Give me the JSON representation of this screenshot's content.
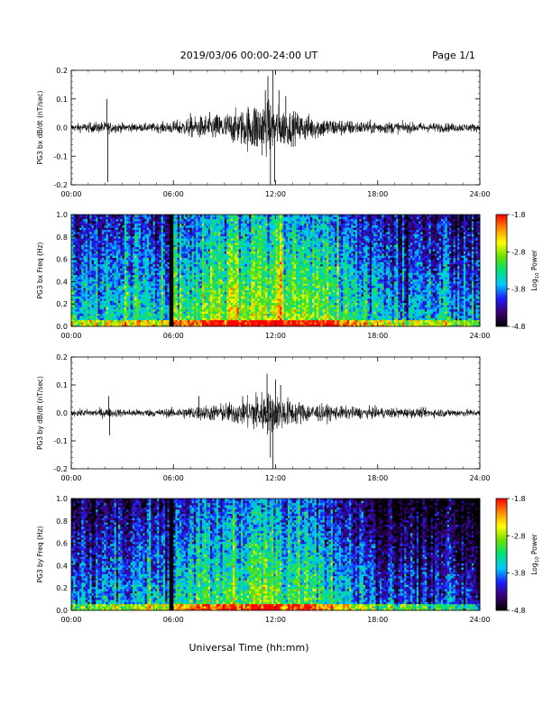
{
  "header": {
    "title": "2019/03/06  00:00-24:00 UT",
    "page": "Page 1/1"
  },
  "footer": {
    "xlabel": "Universal Time (hh:mm)"
  },
  "colors": {
    "trace": "#000000",
    "colormap": [
      "#000000",
      "#3b0070",
      "#1d1dff",
      "#00c8ff",
      "#00e07a",
      "#6be000",
      "#ffff00",
      "#ff8c00",
      "#ff0000"
    ]
  },
  "colorbar": {
    "label": "Log10 Power",
    "label_main": "Log",
    "label_sub": "10",
    "label_tail": " Power",
    "ticks": [
      "-1.8",
      "-2.8",
      "-3.8",
      "-4.8"
    ],
    "range": [
      -4.8,
      -1.8
    ]
  },
  "chart_data": [
    {
      "type": "line",
      "ylabel": "PG3 bx dB/dt (nT/sec)",
      "ylim": [
        -0.2,
        0.2
      ],
      "yticks": [
        "0.2",
        "0.1",
        "0.0",
        "-0.1",
        "-0.2"
      ],
      "xlim": [
        "00:00",
        "24:00"
      ],
      "xticks": [
        "00:00",
        "06:00",
        "12:00",
        "18:00",
        "24:00"
      ],
      "envelope_hours": [
        0,
        1,
        2,
        3,
        4,
        5,
        6,
        7,
        8,
        9,
        10,
        11,
        12,
        13,
        14,
        15,
        16,
        17,
        18,
        19,
        20,
        21,
        22,
        23,
        24
      ],
      "envelope_amplitude": [
        0.012,
        0.015,
        0.018,
        0.014,
        0.012,
        0.014,
        0.02,
        0.03,
        0.04,
        0.045,
        0.055,
        0.09,
        0.07,
        0.05,
        0.04,
        0.03,
        0.025,
        0.02,
        0.02,
        0.018,
        0.016,
        0.015,
        0.014,
        0.013,
        0.012
      ],
      "spikes": [
        [
          2.1,
          0.1
        ],
        [
          2.15,
          -0.19
        ],
        [
          7.0,
          0.05
        ],
        [
          11.4,
          0.13
        ],
        [
          11.55,
          0.18
        ],
        [
          11.7,
          -0.2
        ],
        [
          11.85,
          0.2
        ],
        [
          11.95,
          -0.19
        ],
        [
          12.2,
          0.13
        ],
        [
          12.6,
          0.11
        ]
      ]
    },
    {
      "type": "heatmap",
      "ylabel": "PG3 bx Freq (Hz)",
      "ylim": [
        0.0,
        1.0
      ],
      "yticks": [
        "1.0",
        "0.8",
        "0.6",
        "0.4",
        "0.2",
        "0.0"
      ],
      "xlim": [
        "00:00",
        "24:00"
      ],
      "xticks": [
        "00:00",
        "06:00",
        "12:00",
        "18:00",
        "24:00"
      ],
      "value_range": [
        -4.8,
        -1.8
      ],
      "gaps_hours": [
        [
          5.75,
          5.95
        ]
      ],
      "activity_hours": [
        0,
        2,
        4,
        6,
        8,
        10,
        12,
        14,
        16,
        18,
        20,
        22,
        24
      ],
      "activity_log_power": [
        -3.4,
        -3.3,
        -3.3,
        -3.2,
        -2.8,
        -2.7,
        -2.6,
        -2.8,
        -3.0,
        -3.4,
        -3.6,
        -3.5,
        -3.6
      ]
    },
    {
      "type": "line",
      "ylabel": "PG3 by dB/dt (nT/sec)",
      "ylim": [
        -0.2,
        0.2
      ],
      "yticks": [
        "0.2",
        "0.1",
        "0.0",
        "-0.1",
        "-0.2"
      ],
      "xlim": [
        "00:00",
        "24:00"
      ],
      "xticks": [
        "00:00",
        "06:00",
        "12:00",
        "18:00",
        "24:00"
      ],
      "envelope_hours": [
        0,
        1,
        2,
        3,
        4,
        5,
        6,
        7,
        8,
        9,
        10,
        11,
        12,
        13,
        14,
        15,
        16,
        17,
        18,
        19,
        20,
        21,
        22,
        23,
        24
      ],
      "envelope_amplitude": [
        0.01,
        0.012,
        0.015,
        0.012,
        0.012,
        0.012,
        0.015,
        0.02,
        0.025,
        0.03,
        0.04,
        0.07,
        0.06,
        0.04,
        0.03,
        0.025,
        0.02,
        0.018,
        0.017,
        0.016,
        0.015,
        0.014,
        0.013,
        0.012,
        0.011
      ],
      "spikes": [
        [
          2.2,
          0.06
        ],
        [
          2.25,
          -0.08
        ],
        [
          7.5,
          0.06
        ],
        [
          11.5,
          0.14
        ],
        [
          11.7,
          -0.16
        ],
        [
          11.85,
          -0.2
        ],
        [
          12.0,
          0.12
        ],
        [
          12.3,
          0.1
        ]
      ]
    },
    {
      "type": "heatmap",
      "ylabel": "PG3 by Freq (Hz)",
      "ylim": [
        0.0,
        1.0
      ],
      "yticks": [
        "1.0",
        "0.8",
        "0.6",
        "0.4",
        "0.2",
        "0.0"
      ],
      "xlim": [
        "00:00",
        "24:00"
      ],
      "xticks": [
        "00:00",
        "06:00",
        "12:00",
        "18:00",
        "24:00"
      ],
      "value_range": [
        -4.8,
        -1.8
      ],
      "gaps_hours": [
        [
          5.75,
          5.95
        ]
      ],
      "activity_hours": [
        0,
        2,
        4,
        6,
        8,
        10,
        12,
        14,
        16,
        18,
        20,
        22,
        24
      ],
      "activity_log_power": [
        -3.8,
        -3.6,
        -3.6,
        -3.4,
        -3.1,
        -3.0,
        -2.9,
        -3.2,
        -3.4,
        -3.9,
        -4.0,
        -3.9,
        -4.1
      ]
    }
  ]
}
